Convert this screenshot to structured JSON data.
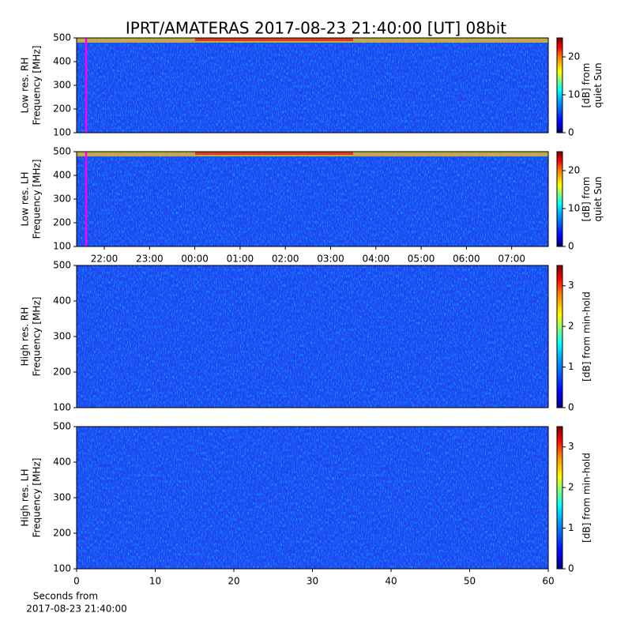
{
  "title": "IPRT/AMATERAS 2017-08-23 21:40:00 [UT]   08bit",
  "chart_data": [
    {
      "type": "heatmap",
      "colormap": "jet",
      "ylabel": [
        "Low res. RH",
        "Frequency [MHz]"
      ],
      "ylim": [
        100,
        500
      ],
      "yticks": [
        100,
        200,
        300,
        400,
        500
      ],
      "colorbar": {
        "label": [
          "[dB] from",
          "quiet Sun"
        ],
        "lim": [
          0,
          25
        ],
        "ticks": [
          0,
          10,
          20
        ]
      }
    },
    {
      "type": "heatmap",
      "colormap": "jet",
      "ylabel": [
        "Low res. LH",
        "Frequency [MHz]"
      ],
      "ylim": [
        100,
        500
      ],
      "yticks": [
        100,
        200,
        300,
        400,
        500
      ],
      "categories": [
        "22:00",
        "23:00",
        "00:00",
        "01:00",
        "02:00",
        "03:00",
        "04:00",
        "05:00",
        "06:00",
        "07:00"
      ],
      "colorbar": {
        "label": [
          "[dB] from",
          "quiet Sun"
        ],
        "lim": [
          0,
          25
        ],
        "ticks": [
          0,
          10,
          20
        ]
      }
    },
    {
      "type": "heatmap",
      "colormap": "jet",
      "ylabel": [
        "High res. RH",
        "Frequency [MHz]"
      ],
      "ylim": [
        100,
        500
      ],
      "yticks": [
        100,
        200,
        300,
        400,
        500
      ],
      "colorbar": {
        "label": [
          "[dB] from min-hold"
        ],
        "lim": [
          0,
          3.5
        ],
        "ticks": [
          0,
          1,
          2,
          3
        ]
      }
    },
    {
      "type": "heatmap",
      "colormap": "jet",
      "ylabel": [
        "High res. LH",
        "Frequency [MHz]"
      ],
      "ylim": [
        100,
        500
      ],
      "yticks": [
        100,
        200,
        300,
        400,
        500
      ],
      "xlim": [
        0,
        60
      ],
      "xticks": [
        0,
        10,
        20,
        30,
        40,
        50,
        60
      ],
      "xlabel": [
        "Seconds from",
        "2017-08-23 21:40:00"
      ],
      "colorbar": {
        "label": [
          "[dB] from min-hold"
        ],
        "lim": [
          0,
          3.5
        ],
        "ticks": [
          0,
          1,
          2,
          3
        ]
      }
    }
  ]
}
